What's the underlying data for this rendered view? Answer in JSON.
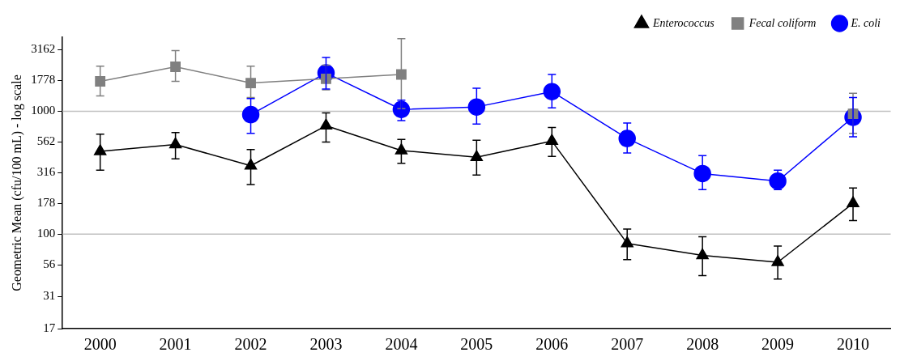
{
  "chart_data": {
    "type": "line",
    "ylabel": "Geometric Mean (cfu/100 mL) - log scale",
    "categories": [
      "2000",
      "2001",
      "2002",
      "2003",
      "2004",
      "2005",
      "2006",
      "2007",
      "2008",
      "2009",
      "2010"
    ],
    "series": [
      {
        "name": "Enterococcus",
        "color": "#000000",
        "marker": "triangle",
        "values": [
          472,
          536,
          360,
          762,
          479,
          422,
          571,
          84,
          67,
          59,
          178
        ],
        "errors": [
          [
            331,
            650
          ],
          [
            409,
            670
          ],
          [
            253,
            487
          ],
          [
            562,
            968
          ],
          [
            377,
            590
          ],
          [
            302,
            581
          ],
          [
            429,
            738
          ],
          [
            62,
            110
          ],
          [
            46,
            95
          ],
          [
            43,
            80
          ],
          [
            129,
            237
          ]
        ]
      },
      {
        "name": "Fecal coliform",
        "color": "#808080",
        "marker": "square",
        "values": [
          1750,
          2300,
          1695,
          1835,
          1990,
          null,
          null,
          null,
          null,
          null,
          953
        ],
        "errors": [
          [
            1330,
            2330
          ],
          [
            1750,
            3110
          ],
          [
            1290,
            2330
          ],
          [
            1490,
            2370
          ],
          [
            1049,
            3890
          ],
          null,
          null,
          null,
          null,
          null,
          [
            660,
            1400
          ]
        ]
      },
      {
        "name": "E. coli",
        "color": "#0000ff",
        "marker": "circle",
        "values": [
          null,
          null,
          938,
          2050,
          1033,
          1083,
          1444,
          600,
          311,
          270,
          894
        ],
        "errors": [
          null,
          null,
          [
            660,
            1270
          ],
          [
            1515,
            2740
          ],
          [
            839,
            1230
          ],
          [
            787,
            1540
          ],
          [
            1066,
            1990
          ],
          [
            457,
            800
          ],
          [
            230,
            435
          ],
          [
            230,
            331
          ],
          [
            619,
            1290
          ]
        ]
      }
    ],
    "log": "y",
    "ylim": [
      17,
      4000
    ],
    "yticks": [
      17,
      31,
      56,
      100,
      178,
      316,
      562,
      1000,
      1778,
      3162
    ],
    "grid": false,
    "legend": "top right",
    "ref_lines": [
      {
        "axis": "y",
        "value": 100,
        "color": "#c0c0c0"
      },
      {
        "axis": "y",
        "value": 1000,
        "color": "#c0c0c0"
      }
    ]
  }
}
